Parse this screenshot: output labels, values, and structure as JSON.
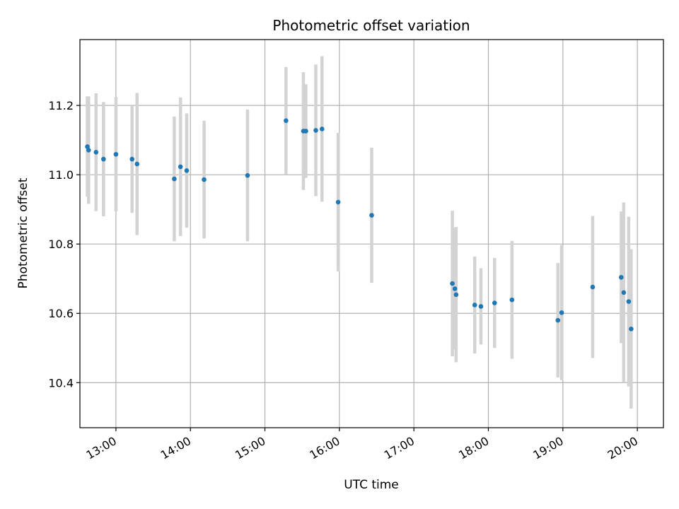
{
  "chart_data": {
    "type": "scatter",
    "title": "Photometric offset variation",
    "xlabel": "UTC time",
    "ylabel": "Photometric offset",
    "xlim": [
      "12:31",
      "20:21"
    ],
    "ylim": [
      10.27,
      11.39
    ],
    "x_ticks": [
      "13:00",
      "14:00",
      "15:00",
      "16:00",
      "17:00",
      "18:00",
      "19:00",
      "20:00"
    ],
    "y_ticks": [
      "10.4",
      "10.6",
      "10.8",
      "11.0",
      "11.2"
    ],
    "grid": true,
    "marker_color": "#1f77b4",
    "errorbar_color": "#d3d3d3",
    "series": [
      {
        "points": [
          {
            "x": "12:37",
            "y": 11.081,
            "err": 0.145
          },
          {
            "x": "12:38",
            "y": 11.071,
            "err": 0.155
          },
          {
            "x": "12:44",
            "y": 11.065,
            "err": 0.17
          },
          {
            "x": "12:50",
            "y": 11.045,
            "err": 0.165
          },
          {
            "x": "13:00",
            "y": 11.059,
            "err": 0.165
          },
          {
            "x": "13:13",
            "y": 11.045,
            "err": 0.155
          },
          {
            "x": "13:17",
            "y": 11.031,
            "err": 0.205
          },
          {
            "x": "13:47",
            "y": 10.988,
            "err": 0.18
          },
          {
            "x": "13:52",
            "y": 11.023,
            "err": 0.2
          },
          {
            "x": "13:57",
            "y": 11.012,
            "err": 0.165
          },
          {
            "x": "14:11",
            "y": 10.986,
            "err": 0.17
          },
          {
            "x": "14:46",
            "y": 10.998,
            "err": 0.19
          },
          {
            "x": "15:17",
            "y": 11.156,
            "err": 0.155
          },
          {
            "x": "15:31",
            "y": 11.126,
            "err": 0.17
          },
          {
            "x": "15:33",
            "y": 11.126,
            "err": 0.135
          },
          {
            "x": "15:41",
            "y": 11.128,
            "err": 0.19
          },
          {
            "x": "15:46",
            "y": 11.132,
            "err": 0.21
          },
          {
            "x": "15:59",
            "y": 10.921,
            "err": 0.2
          },
          {
            "x": "16:26",
            "y": 10.883,
            "err": 0.195
          },
          {
            "x": "17:31",
            "y": 10.686,
            "err": 0.21
          },
          {
            "x": "17:33",
            "y": 10.671,
            "err": 0.175
          },
          {
            "x": "17:34",
            "y": 10.654,
            "err": 0.195
          },
          {
            "x": "17:49",
            "y": 10.624,
            "err": 0.14
          },
          {
            "x": "17:54",
            "y": 10.62,
            "err": 0.11
          },
          {
            "x": "18:05",
            "y": 10.63,
            "err": 0.13
          },
          {
            "x": "18:19",
            "y": 10.639,
            "err": 0.17
          },
          {
            "x": "18:56",
            "y": 10.58,
            "err": 0.165
          },
          {
            "x": "18:59",
            "y": 10.602,
            "err": 0.195
          },
          {
            "x": "19:24",
            "y": 10.676,
            "err": 0.205
          },
          {
            "x": "19:47",
            "y": 10.704,
            "err": 0.19
          },
          {
            "x": "19:49",
            "y": 10.66,
            "err": 0.26
          },
          {
            "x": "19:53",
            "y": 10.634,
            "err": 0.245
          },
          {
            "x": "19:55",
            "y": 10.555,
            "err": 0.23
          }
        ]
      }
    ]
  }
}
